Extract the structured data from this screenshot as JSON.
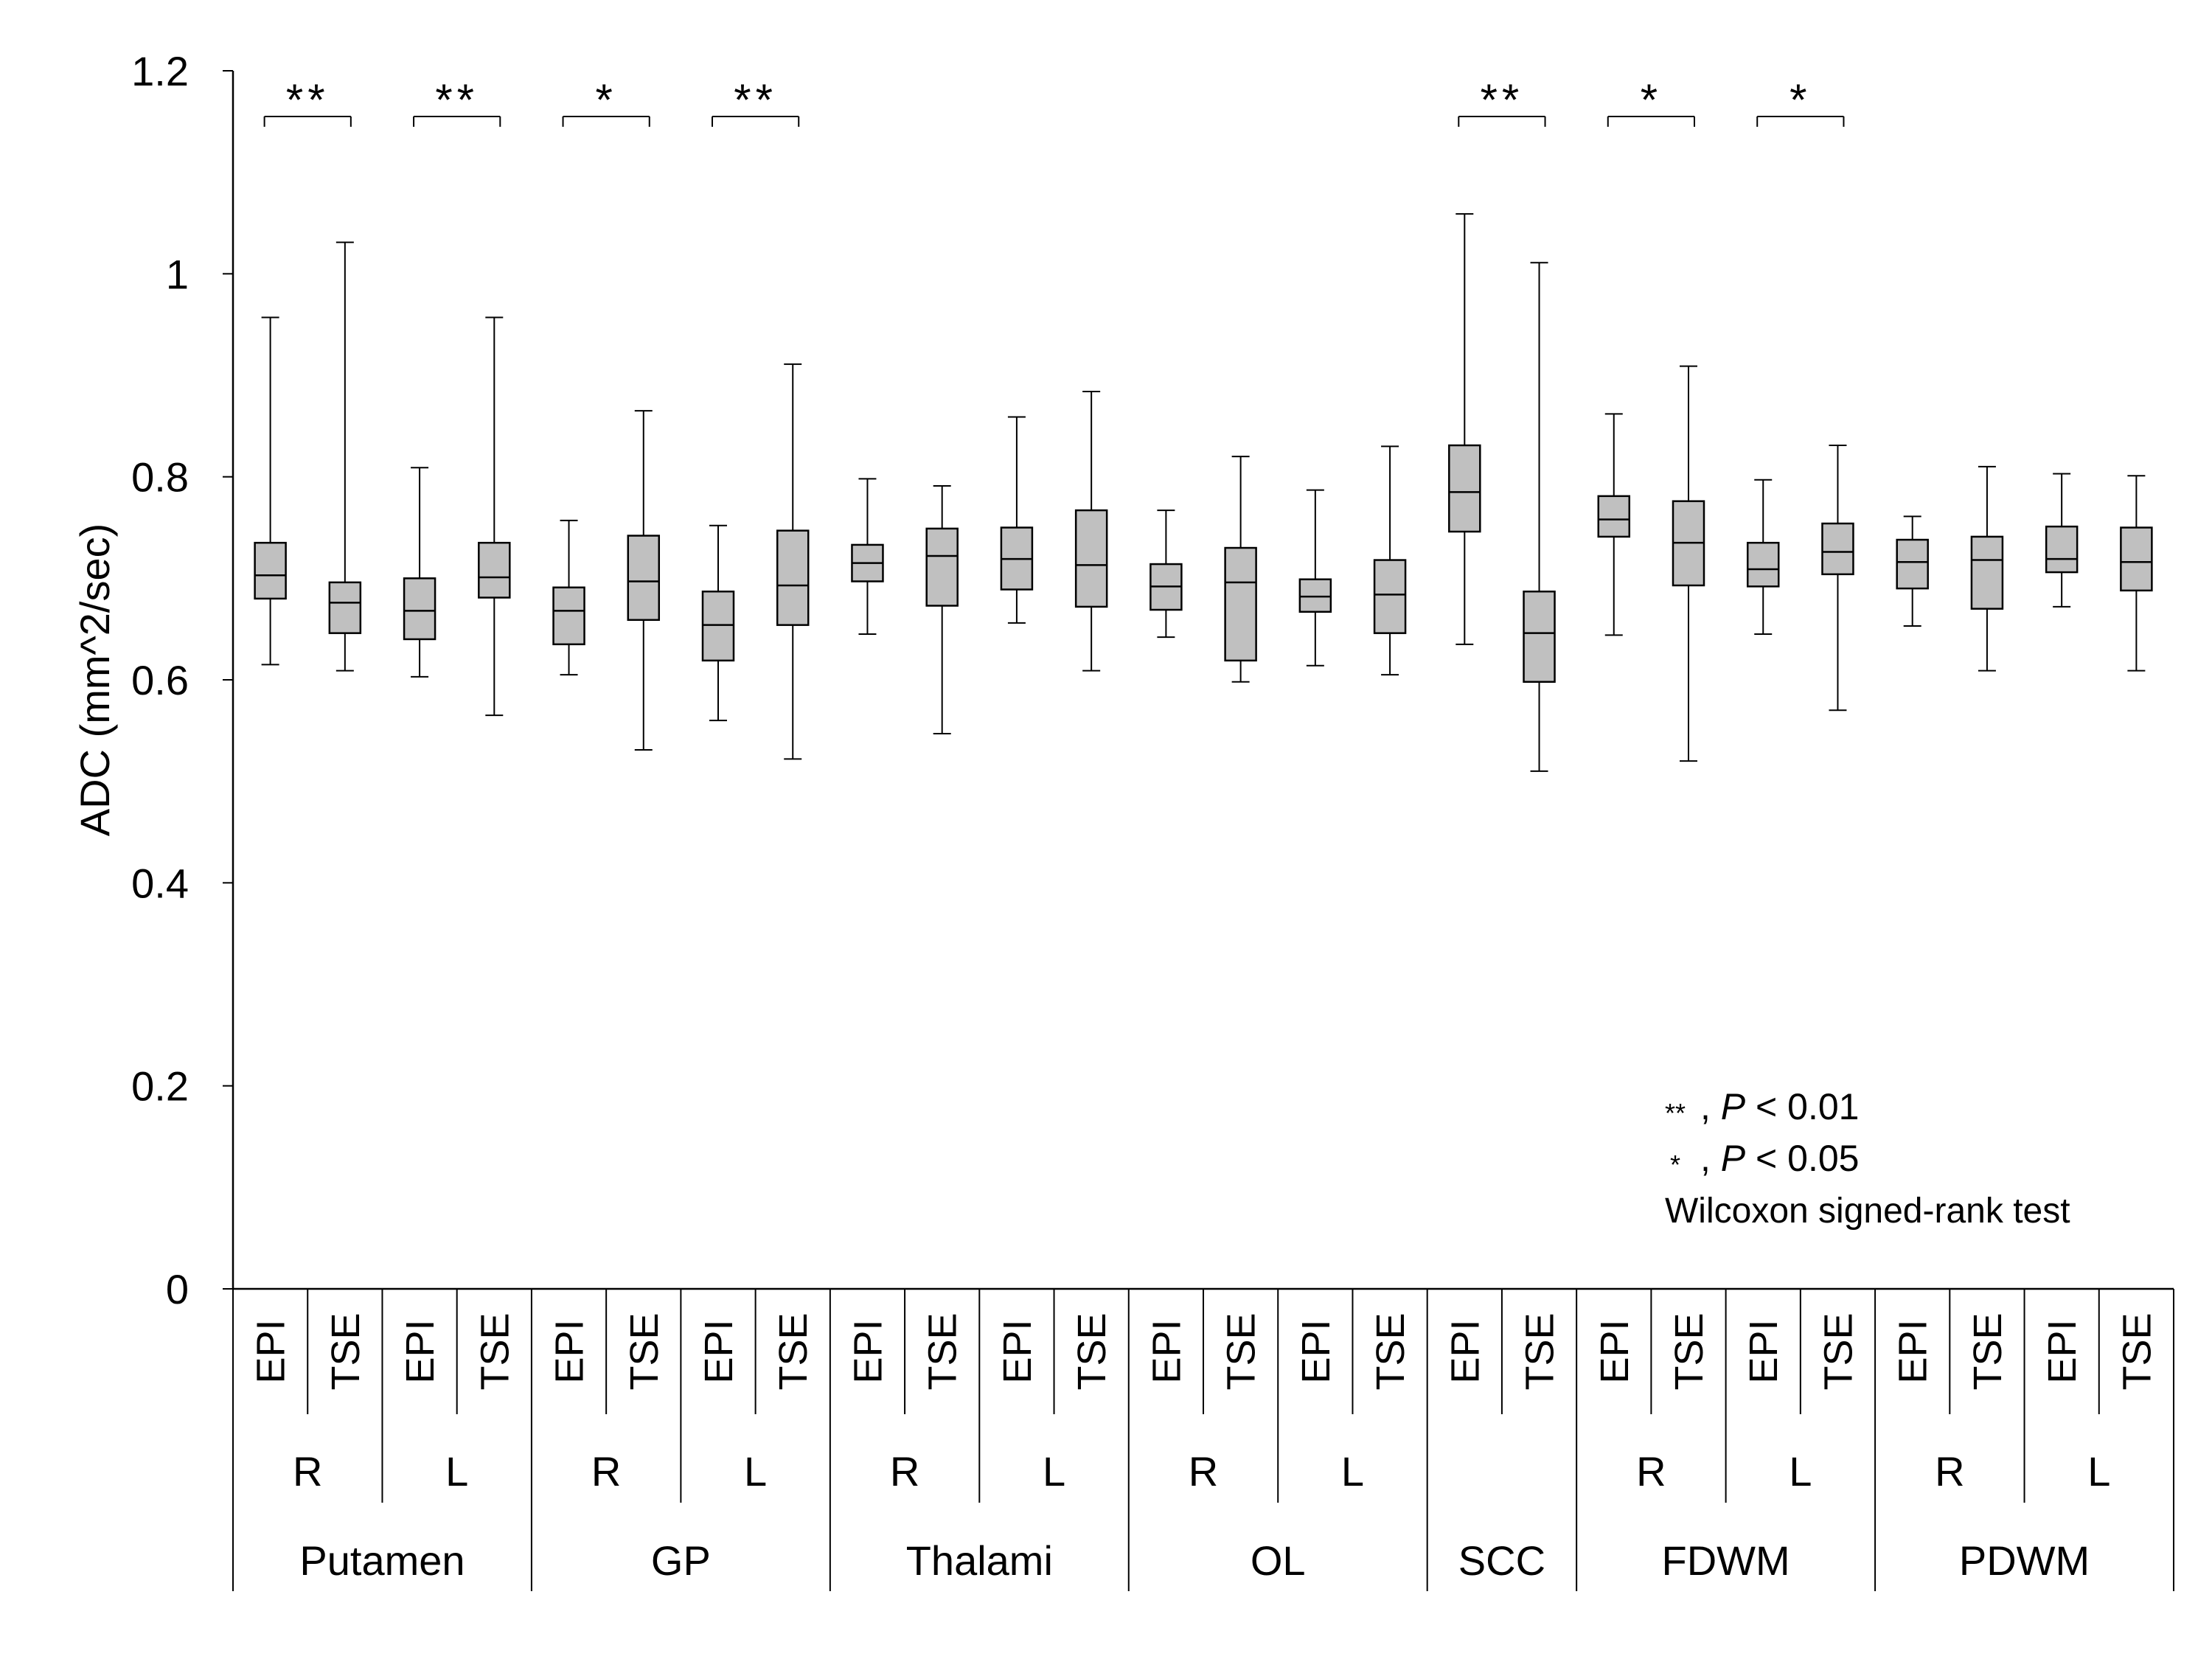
{
  "chart_data": {
    "type": "boxplot",
    "ylabel": "ADC (mm^2/sec)",
    "ylim": [
      0,
      1.2
    ],
    "yticks": [
      "0",
      "0.2",
      "0.4",
      "0.6",
      "0.8",
      "1",
      "1.2"
    ],
    "colors": {
      "box_fill": "#c0c0c0",
      "stroke": "#000000"
    },
    "regions": [
      {
        "name": "Putamen",
        "sides": [
          "R",
          "L"
        ]
      },
      {
        "name": "GP",
        "sides": [
          "R",
          "L"
        ]
      },
      {
        "name": "Thalami",
        "sides": [
          "R",
          "L"
        ]
      },
      {
        "name": "OL",
        "sides": [
          "R",
          "L"
        ]
      },
      {
        "name": "SCC",
        "sides": [
          ""
        ]
      },
      {
        "name": "FDWM",
        "sides": [
          "R",
          "L"
        ]
      },
      {
        "name": "PDWM",
        "sides": [
          "R",
          "L"
        ]
      }
    ],
    "boxes": [
      {
        "region": "Putamen",
        "side": "R",
        "method": "EPI",
        "min": 0.615,
        "q1": 0.68,
        "median": 0.703,
        "q3": 0.735,
        "max": 0.957
      },
      {
        "region": "Putamen",
        "side": "R",
        "method": "TSE",
        "min": 0.609,
        "q1": 0.646,
        "median": 0.676,
        "q3": 0.696,
        "max": 1.031
      },
      {
        "region": "Putamen",
        "side": "L",
        "method": "EPI",
        "min": 0.603,
        "q1": 0.64,
        "median": 0.668,
        "q3": 0.7,
        "max": 0.809
      },
      {
        "region": "Putamen",
        "side": "L",
        "method": "TSE",
        "min": 0.565,
        "q1": 0.681,
        "median": 0.701,
        "q3": 0.735,
        "max": 0.957
      },
      {
        "region": "GP",
        "side": "R",
        "method": "EPI",
        "min": 0.605,
        "q1": 0.635,
        "median": 0.668,
        "q3": 0.691,
        "max": 0.757
      },
      {
        "region": "GP",
        "side": "R",
        "method": "TSE",
        "min": 0.531,
        "q1": 0.659,
        "median": 0.697,
        "q3": 0.742,
        "max": 0.865
      },
      {
        "region": "GP",
        "side": "L",
        "method": "EPI",
        "min": 0.56,
        "q1": 0.619,
        "median": 0.654,
        "q3": 0.687,
        "max": 0.752
      },
      {
        "region": "GP",
        "side": "L",
        "method": "TSE",
        "min": 0.522,
        "q1": 0.654,
        "median": 0.693,
        "q3": 0.747,
        "max": 0.911
      },
      {
        "region": "Thalami",
        "side": "R",
        "method": "EPI",
        "min": 0.645,
        "q1": 0.697,
        "median": 0.715,
        "q3": 0.733,
        "max": 0.798
      },
      {
        "region": "Thalami",
        "side": "R",
        "method": "TSE",
        "min": 0.547,
        "q1": 0.673,
        "median": 0.722,
        "q3": 0.749,
        "max": 0.791
      },
      {
        "region": "Thalami",
        "side": "L",
        "method": "EPI",
        "min": 0.656,
        "q1": 0.689,
        "median": 0.719,
        "q3": 0.75,
        "max": 0.859
      },
      {
        "region": "Thalami",
        "side": "L",
        "method": "TSE",
        "min": 0.609,
        "q1": 0.672,
        "median": 0.713,
        "q3": 0.767,
        "max": 0.884
      },
      {
        "region": "OL",
        "side": "R",
        "method": "EPI",
        "min": 0.642,
        "q1": 0.669,
        "median": 0.692,
        "q3": 0.714,
        "max": 0.767
      },
      {
        "region": "OL",
        "side": "R",
        "method": "TSE",
        "min": 0.598,
        "q1": 0.619,
        "median": 0.696,
        "q3": 0.73,
        "max": 0.82
      },
      {
        "region": "OL",
        "side": "L",
        "method": "EPI",
        "min": 0.614,
        "q1": 0.667,
        "median": 0.682,
        "q3": 0.699,
        "max": 0.787
      },
      {
        "region": "OL",
        "side": "L",
        "method": "TSE",
        "min": 0.605,
        "q1": 0.646,
        "median": 0.684,
        "q3": 0.718,
        "max": 0.83
      },
      {
        "region": "SCC",
        "side": "",
        "method": "EPI",
        "min": 0.635,
        "q1": 0.746,
        "median": 0.785,
        "q3": 0.831,
        "max": 1.059
      },
      {
        "region": "SCC",
        "side": "",
        "method": "TSE",
        "min": 0.51,
        "q1": 0.598,
        "median": 0.646,
        "q3": 0.687,
        "max": 1.011
      },
      {
        "region": "FDWM",
        "side": "R",
        "method": "EPI",
        "min": 0.644,
        "q1": 0.741,
        "median": 0.758,
        "q3": 0.781,
        "max": 0.862
      },
      {
        "region": "FDWM",
        "side": "R",
        "method": "TSE",
        "min": 0.52,
        "q1": 0.693,
        "median": 0.735,
        "q3": 0.776,
        "max": 0.909
      },
      {
        "region": "FDWM",
        "side": "L",
        "method": "EPI",
        "min": 0.645,
        "q1": 0.692,
        "median": 0.709,
        "q3": 0.735,
        "max": 0.797
      },
      {
        "region": "FDWM",
        "side": "L",
        "method": "TSE",
        "min": 0.57,
        "q1": 0.704,
        "median": 0.726,
        "q3": 0.754,
        "max": 0.831
      },
      {
        "region": "PDWM",
        "side": "R",
        "method": "EPI",
        "min": 0.653,
        "q1": 0.69,
        "median": 0.716,
        "q3": 0.738,
        "max": 0.761
      },
      {
        "region": "PDWM",
        "side": "R",
        "method": "TSE",
        "min": 0.609,
        "q1": 0.67,
        "median": 0.718,
        "q3": 0.741,
        "max": 0.81
      },
      {
        "region": "PDWM",
        "side": "L",
        "method": "EPI",
        "min": 0.672,
        "q1": 0.706,
        "median": 0.719,
        "q3": 0.751,
        "max": 0.803
      },
      {
        "region": "PDWM",
        "side": "L",
        "method": "TSE",
        "min": 0.609,
        "q1": 0.688,
        "median": 0.716,
        "q3": 0.75,
        "max": 0.801
      }
    ],
    "significance": [
      {
        "from_box": 0,
        "to_box": 1,
        "label": "**"
      },
      {
        "from_box": 2,
        "to_box": 3,
        "label": "**"
      },
      {
        "from_box": 4,
        "to_box": 5,
        "label": "*"
      },
      {
        "from_box": 6,
        "to_box": 7,
        "label": "**"
      },
      {
        "from_box": 16,
        "to_box": 17,
        "label": "**"
      },
      {
        "from_box": 18,
        "to_box": 19,
        "label": "*"
      },
      {
        "from_box": 20,
        "to_box": 21,
        "label": "*"
      }
    ],
    "significance_bracket_value": 1.155,
    "legend": [
      {
        "symbol": "**",
        "text": ", ",
        "p_symbol": "P",
        "condition": " < 0.01"
      },
      {
        "symbol": "*",
        "text": ", ",
        "p_symbol": "P",
        "condition": " < 0.05"
      }
    ],
    "test_name": "Wilcoxon signed-rank test"
  }
}
